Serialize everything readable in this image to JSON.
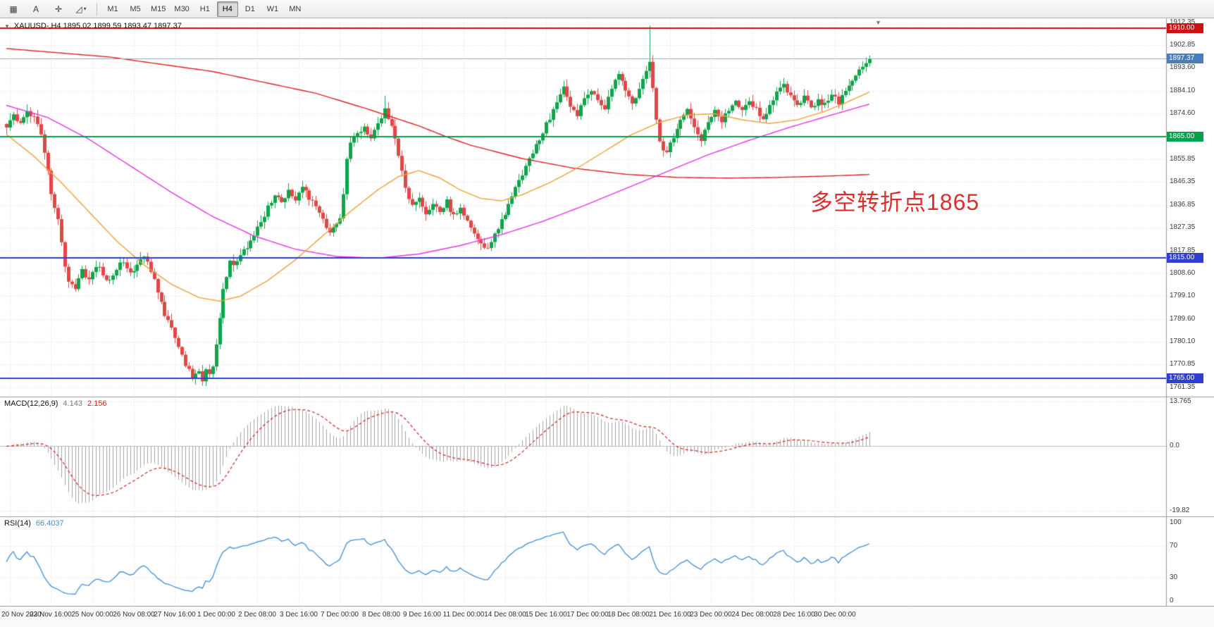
{
  "toolbar": {
    "icons": [
      {
        "name": "chart-grid-icon",
        "glyph": "▦",
        "has_dropdown": false
      },
      {
        "name": "text-tool-icon",
        "glyph": "A",
        "has_dropdown": false
      },
      {
        "name": "crosshair-icon",
        "glyph": "✛",
        "has_dropdown": false
      },
      {
        "name": "draw-tools-icon",
        "glyph": "◿",
        "has_dropdown": true
      }
    ],
    "dropdown_glyph": "▾",
    "timeframes": [
      "M1",
      "M5",
      "M15",
      "M30",
      "H1",
      "H4",
      "D1",
      "W1",
      "MN"
    ],
    "active_timeframe": "H4"
  },
  "chart": {
    "title": "XAUUSD-,H4 1895.02 1899.59 1893.47 1897.37",
    "collapse_glyph": "▼",
    "shift_marker_glyph": "▼",
    "annotation": {
      "text": "多空转折点1865",
      "color": "#e12c2c"
    },
    "price_ticks": [
      1912.35,
      1902.85,
      1893.6,
      1884.1,
      1874.6,
      1855.85,
      1846.35,
      1836.85,
      1827.35,
      1817.85,
      1808.6,
      1799.1,
      1789.6,
      1780.1,
      1770.85,
      1761.35
    ],
    "levels": [
      {
        "label": "1910.00",
        "value": 1910.0,
        "line_color": "#cc1212",
        "badge_color": "#cc1212",
        "width": 2
      },
      {
        "label": "1897.37",
        "value": 1897.37,
        "line_color": "#8fa6cc",
        "badge_color": "#4a7ebb",
        "width": 1
      },
      {
        "label": "1865.00",
        "value": 1865.0,
        "line_color": "#00a14e",
        "badge_color": "#00a14e",
        "width": 2
      },
      {
        "label": "1815.00",
        "value": 1815.0,
        "line_color": "#2e3fd2",
        "badge_color": "#2e3fd2",
        "width": 2
      },
      {
        "label": "1765.00",
        "value": 1765.0,
        "line_color": "#2e3fd2",
        "badge_color": "#2e3fd2",
        "width": 2
      }
    ]
  },
  "macd_panel": {
    "name": "MACD(12,26,9)",
    "value_main": "4.143",
    "value_signal": "2.156",
    "ticks": [
      {
        "label": "13.765",
        "value": 13.765
      },
      {
        "label": "0.0",
        "value": 0
      },
      {
        "label": "-19.82",
        "value": -19.82
      }
    ]
  },
  "rsi_panel": {
    "name": "RSI(14)",
    "value": "66.4037",
    "ticks": [
      {
        "label": "100",
        "value": 100
      },
      {
        "label": "70",
        "value": 70
      },
      {
        "label": "30",
        "value": 30
      },
      {
        "label": "0",
        "value": 0
      }
    ]
  },
  "time_axis": {
    "first_index": 1,
    "step": 12,
    "labels": [
      "20 Nov 2020",
      "23 Nov 16:00",
      "25 Nov 00:00",
      "26 Nov 08:00",
      "27 Nov 16:00",
      "1 Dec 00:00",
      "2 Dec 08:00",
      "3 Dec 16:00",
      "7 Dec 00:00",
      "8 Dec 08:00",
      "9 Dec 16:00",
      "11 Dec 00:00",
      "14 Dec 08:00",
      "15 Dec 16:00",
      "17 Dec 00:00",
      "18 Dec 08:00",
      "21 Dec 16:00",
      "23 Dec 00:00",
      "24 Dec 08:00",
      "28 Dec 16:00",
      "30 Dec 00:00"
    ]
  },
  "chart_data": {
    "type": "candlestick",
    "symbol": "XAUUSD",
    "period": "H4",
    "title": "XAUUSD-,H4",
    "ohlc_current": {
      "open": 1895.02,
      "high": 1899.59,
      "low": 1893.47,
      "close": 1897.37
    },
    "candle_count": 252,
    "price_range": [
      1757.5,
      1914.0
    ],
    "bull_color": "#10a44c",
    "bear_color": "#e04848",
    "close_keypoints": [
      [
        0,
        1870
      ],
      [
        2,
        1874
      ],
      [
        4,
        1871
      ],
      [
        6,
        1876
      ],
      [
        8,
        1873
      ],
      [
        10,
        1867
      ],
      [
        11,
        1858
      ],
      [
        12,
        1850
      ],
      [
        13,
        1842
      ],
      [
        14,
        1836
      ],
      [
        15,
        1830
      ],
      [
        16,
        1822
      ],
      [
        17,
        1812
      ],
      [
        18,
        1806
      ],
      [
        20,
        1803
      ],
      [
        22,
        1810
      ],
      [
        24,
        1806
      ],
      [
        26,
        1812
      ],
      [
        28,
        1808
      ],
      [
        30,
        1805
      ],
      [
        32,
        1811
      ],
      [
        34,
        1814
      ],
      [
        36,
        1809
      ],
      [
        38,
        1812
      ],
      [
        40,
        1815
      ],
      [
        42,
        1810
      ],
      [
        44,
        1800
      ],
      [
        46,
        1792
      ],
      [
        48,
        1786
      ],
      [
        50,
        1778
      ],
      [
        52,
        1770
      ],
      [
        54,
        1766
      ],
      [
        56,
        1768
      ],
      [
        57,
        1764
      ],
      [
        58,
        1769
      ],
      [
        59,
        1766
      ],
      [
        60,
        1771
      ],
      [
        61,
        1779
      ],
      [
        62,
        1791
      ],
      [
        63,
        1801
      ],
      [
        64,
        1808
      ],
      [
        65,
        1814
      ],
      [
        66,
        1811
      ],
      [
        68,
        1816
      ],
      [
        70,
        1819
      ],
      [
        72,
        1824
      ],
      [
        74,
        1830
      ],
      [
        76,
        1836
      ],
      [
        78,
        1841
      ],
      [
        80,
        1838
      ],
      [
        82,
        1843
      ],
      [
        84,
        1839
      ],
      [
        86,
        1845
      ],
      [
        88,
        1840
      ],
      [
        90,
        1836
      ],
      [
        92,
        1830
      ],
      [
        94,
        1825
      ],
      [
        96,
        1828
      ],
      [
        97,
        1832
      ],
      [
        98,
        1842
      ],
      [
        99,
        1855
      ],
      [
        100,
        1862
      ],
      [
        102,
        1866
      ],
      [
        104,
        1870
      ],
      [
        106,
        1864
      ],
      [
        108,
        1871
      ],
      [
        110,
        1876
      ],
      [
        112,
        1870
      ],
      [
        114,
        1858
      ],
      [
        116,
        1844
      ],
      [
        118,
        1836
      ],
      [
        120,
        1840
      ],
      [
        122,
        1833
      ],
      [
        124,
        1838
      ],
      [
        126,
        1834
      ],
      [
        128,
        1838
      ],
      [
        130,
        1832
      ],
      [
        132,
        1836
      ],
      [
        134,
        1830
      ],
      [
        136,
        1825
      ],
      [
        138,
        1821
      ],
      [
        140,
        1818
      ],
      [
        142,
        1824
      ],
      [
        144,
        1830
      ],
      [
        146,
        1837
      ],
      [
        148,
        1844
      ],
      [
        150,
        1850
      ],
      [
        152,
        1856
      ],
      [
        154,
        1862
      ],
      [
        156,
        1867
      ],
      [
        158,
        1873
      ],
      [
        160,
        1879
      ],
      [
        162,
        1885
      ],
      [
        164,
        1878
      ],
      [
        166,
        1874
      ],
      [
        168,
        1880
      ],
      [
        170,
        1885
      ],
      [
        172,
        1881
      ],
      [
        174,
        1877
      ],
      [
        176,
        1885
      ],
      [
        178,
        1890
      ],
      [
        180,
        1885
      ],
      [
        182,
        1878
      ],
      [
        184,
        1884
      ],
      [
        186,
        1892
      ],
      [
        187,
        1897
      ],
      [
        188,
        1884
      ],
      [
        189,
        1872
      ],
      [
        190,
        1863
      ],
      [
        192,
        1858
      ],
      [
        194,
        1865
      ],
      [
        196,
        1871
      ],
      [
        198,
        1876
      ],
      [
        200,
        1869
      ],
      [
        202,
        1864
      ],
      [
        204,
        1871
      ],
      [
        206,
        1876
      ],
      [
        208,
        1872
      ],
      [
        210,
        1876
      ],
      [
        212,
        1879
      ],
      [
        214,
        1876
      ],
      [
        216,
        1880
      ],
      [
        218,
        1876
      ],
      [
        220,
        1873
      ],
      [
        222,
        1878
      ],
      [
        224,
        1883
      ],
      [
        226,
        1887
      ],
      [
        228,
        1882
      ],
      [
        230,
        1877
      ],
      [
        232,
        1881
      ],
      [
        234,
        1877
      ],
      [
        236,
        1880
      ],
      [
        238,
        1878
      ],
      [
        240,
        1883
      ],
      [
        242,
        1879
      ],
      [
        244,
        1884
      ],
      [
        246,
        1888
      ],
      [
        248,
        1892
      ],
      [
        250,
        1895
      ],
      [
        251,
        1897.4
      ]
    ],
    "wick_spikes": [
      [
        187,
        1911.0,
        null
      ],
      [
        57,
        null,
        1762.0
      ],
      [
        110,
        1882.0,
        null
      ]
    ],
    "ma_lines": [
      {
        "name": "slow-ma",
        "color": "#e02020",
        "keypoints": [
          [
            0,
            1901.5
          ],
          [
            30,
            1898
          ],
          [
            60,
            1892
          ],
          [
            90,
            1883
          ],
          [
            105,
            1876.5
          ],
          [
            120,
            1869.5
          ],
          [
            128,
            1865
          ],
          [
            135,
            1861.5
          ],
          [
            150,
            1856
          ],
          [
            165,
            1852
          ],
          [
            180,
            1849.5
          ],
          [
            195,
            1848.2
          ],
          [
            210,
            1847.9
          ],
          [
            225,
            1848.2
          ],
          [
            240,
            1848.8
          ],
          [
            251,
            1849.4
          ]
        ]
      },
      {
        "name": "mid-ma",
        "color": "#e832e8",
        "keypoints": [
          [
            0,
            1878
          ],
          [
            12,
            1873
          ],
          [
            24,
            1864
          ],
          [
            36,
            1853
          ],
          [
            48,
            1842
          ],
          [
            60,
            1832
          ],
          [
            72,
            1824
          ],
          [
            84,
            1818.5
          ],
          [
            96,
            1815.5
          ],
          [
            108,
            1814.8
          ],
          [
            120,
            1816.5
          ],
          [
            132,
            1820
          ],
          [
            144,
            1824.5
          ],
          [
            156,
            1830
          ],
          [
            168,
            1836.5
          ],
          [
            180,
            1843.5
          ],
          [
            192,
            1850.5
          ],
          [
            204,
            1857.5
          ],
          [
            216,
            1863.5
          ],
          [
            228,
            1869
          ],
          [
            240,
            1874
          ],
          [
            251,
            1878.5
          ]
        ]
      },
      {
        "name": "fast-ma",
        "color": "#f0a035",
        "keypoints": [
          [
            0,
            1866
          ],
          [
            8,
            1857
          ],
          [
            16,
            1846
          ],
          [
            24,
            1834
          ],
          [
            32,
            1822
          ],
          [
            40,
            1812
          ],
          [
            48,
            1804
          ],
          [
            56,
            1798.5
          ],
          [
            62,
            1797
          ],
          [
            68,
            1799
          ],
          [
            76,
            1805.5
          ],
          [
            84,
            1814
          ],
          [
            92,
            1824
          ],
          [
            100,
            1834
          ],
          [
            108,
            1843
          ],
          [
            114,
            1848.5
          ],
          [
            120,
            1851
          ],
          [
            126,
            1848
          ],
          [
            132,
            1843
          ],
          [
            138,
            1839.5
          ],
          [
            144,
            1838.5
          ],
          [
            150,
            1841
          ],
          [
            158,
            1846
          ],
          [
            166,
            1852
          ],
          [
            174,
            1859
          ],
          [
            182,
            1866
          ],
          [
            190,
            1871
          ],
          [
            198,
            1874
          ],
          [
            206,
            1874.5
          ],
          [
            214,
            1872
          ],
          [
            222,
            1870.5
          ],
          [
            230,
            1872
          ],
          [
            238,
            1875.5
          ],
          [
            244,
            1879
          ],
          [
            251,
            1883.5
          ]
        ]
      }
    ],
    "macd": {
      "fast": 12,
      "slow": 26,
      "signal": 9,
      "hist_color": "#a4a4a4",
      "signal_color": "#d42020",
      "scale": [
        -21.5,
        15.2
      ]
    },
    "rsi": {
      "period": 14,
      "color": "#3f8ed8",
      "scale": [
        -6,
        108
      ],
      "guide_levels": [
        70,
        30
      ]
    }
  }
}
